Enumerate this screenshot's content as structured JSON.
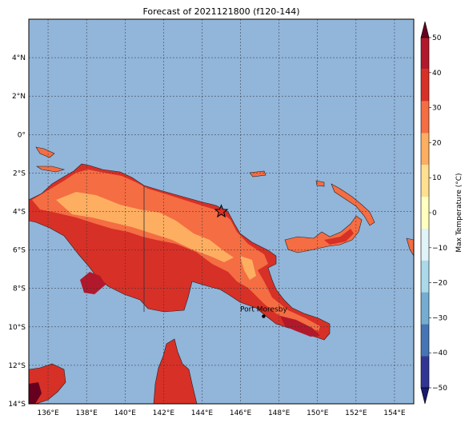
{
  "title": "Forecast of 2021121800 (f120-144)",
  "map": {
    "lon_range": [
      135,
      155
    ],
    "lat_range": [
      -14,
      6
    ],
    "lon_ticks": [
      "136°E",
      "138°E",
      "140°E",
      "142°E",
      "144°E",
      "146°E",
      "148°E",
      "150°E",
      "152°E",
      "154°E"
    ],
    "lat_ticks": [
      "4°N",
      "2°N",
      "0°",
      "2°S",
      "4°S",
      "6°S",
      "8°S",
      "10°S",
      "12°S",
      "14°S"
    ],
    "ocean_color": "#92b5da",
    "grid": true,
    "marker": {
      "symbol": "star-icon",
      "lon": 145.0,
      "lat": -4.0,
      "color": "#d73027"
    },
    "place_label": {
      "text": "Port Moresby",
      "lon": 147.2,
      "lat": -9.45
    }
  },
  "colorbar": {
    "label": "Max Temperature (°C)",
    "ticks": [
      "50",
      "40",
      "30",
      "20",
      "10",
      "0",
      "−10",
      "−20",
      "−30",
      "−40",
      "−50"
    ],
    "levels": [
      "#67001f",
      "#b2182b",
      "#d73027",
      "#f46d43",
      "#fdae61",
      "#fee090",
      "#ffffbf",
      "#e0f3f8",
      "#abd9e9",
      "#74add1",
      "#4575b4",
      "#313695",
      "#1a1a6e"
    ],
    "extend": "both"
  },
  "legend_colors": {
    "hot": "#d73027",
    "warm": "#f46d43",
    "mild": "#fdae61",
    "very_hot": "#b2182b",
    "extreme": "#67001f"
  }
}
